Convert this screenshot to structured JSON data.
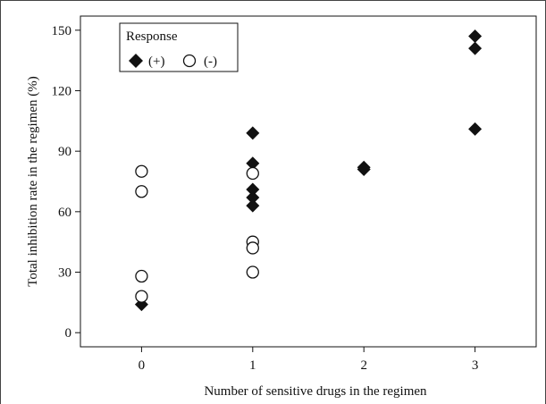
{
  "chart_data": {
    "type": "scatter",
    "title": "",
    "xlabel": "Number of sensitive drugs in the regimen",
    "ylabel": "Total inhibition rate in the regimen (%)",
    "xlim": [
      -0.55,
      3.55
    ],
    "ylim": [
      -7,
      157
    ],
    "x_ticks": [
      0,
      1,
      2,
      3
    ],
    "y_ticks": [
      0,
      30,
      60,
      90,
      120,
      150
    ],
    "grid": false,
    "legend": {
      "title": "Response",
      "placement": "top-left",
      "entries": [
        {
          "label": "(+)",
          "marker": "filled-diamond"
        },
        {
          "label": "(-)",
          "marker": "open-circle"
        }
      ]
    },
    "series": [
      {
        "name": "(+)",
        "marker": "filled-diamond",
        "color": "#111111",
        "points": [
          {
            "x": 0,
            "y": 14
          },
          {
            "x": 1,
            "y": 99
          },
          {
            "x": 1,
            "y": 84
          },
          {
            "x": 1,
            "y": 71
          },
          {
            "x": 1,
            "y": 67
          },
          {
            "x": 1,
            "y": 63
          },
          {
            "x": 2,
            "y": 82
          },
          {
            "x": 2,
            "y": 81
          },
          {
            "x": 3,
            "y": 147
          },
          {
            "x": 3,
            "y": 141
          },
          {
            "x": 3,
            "y": 101
          }
        ]
      },
      {
        "name": "(-)",
        "marker": "open-circle",
        "color": "#111111",
        "points": [
          {
            "x": 0,
            "y": 80
          },
          {
            "x": 0,
            "y": 70
          },
          {
            "x": 0,
            "y": 28
          },
          {
            "x": 0,
            "y": 18
          },
          {
            "x": 1,
            "y": 79
          },
          {
            "x": 1,
            "y": 45
          },
          {
            "x": 1,
            "y": 42
          },
          {
            "x": 1,
            "y": 30
          }
        ]
      }
    ]
  }
}
